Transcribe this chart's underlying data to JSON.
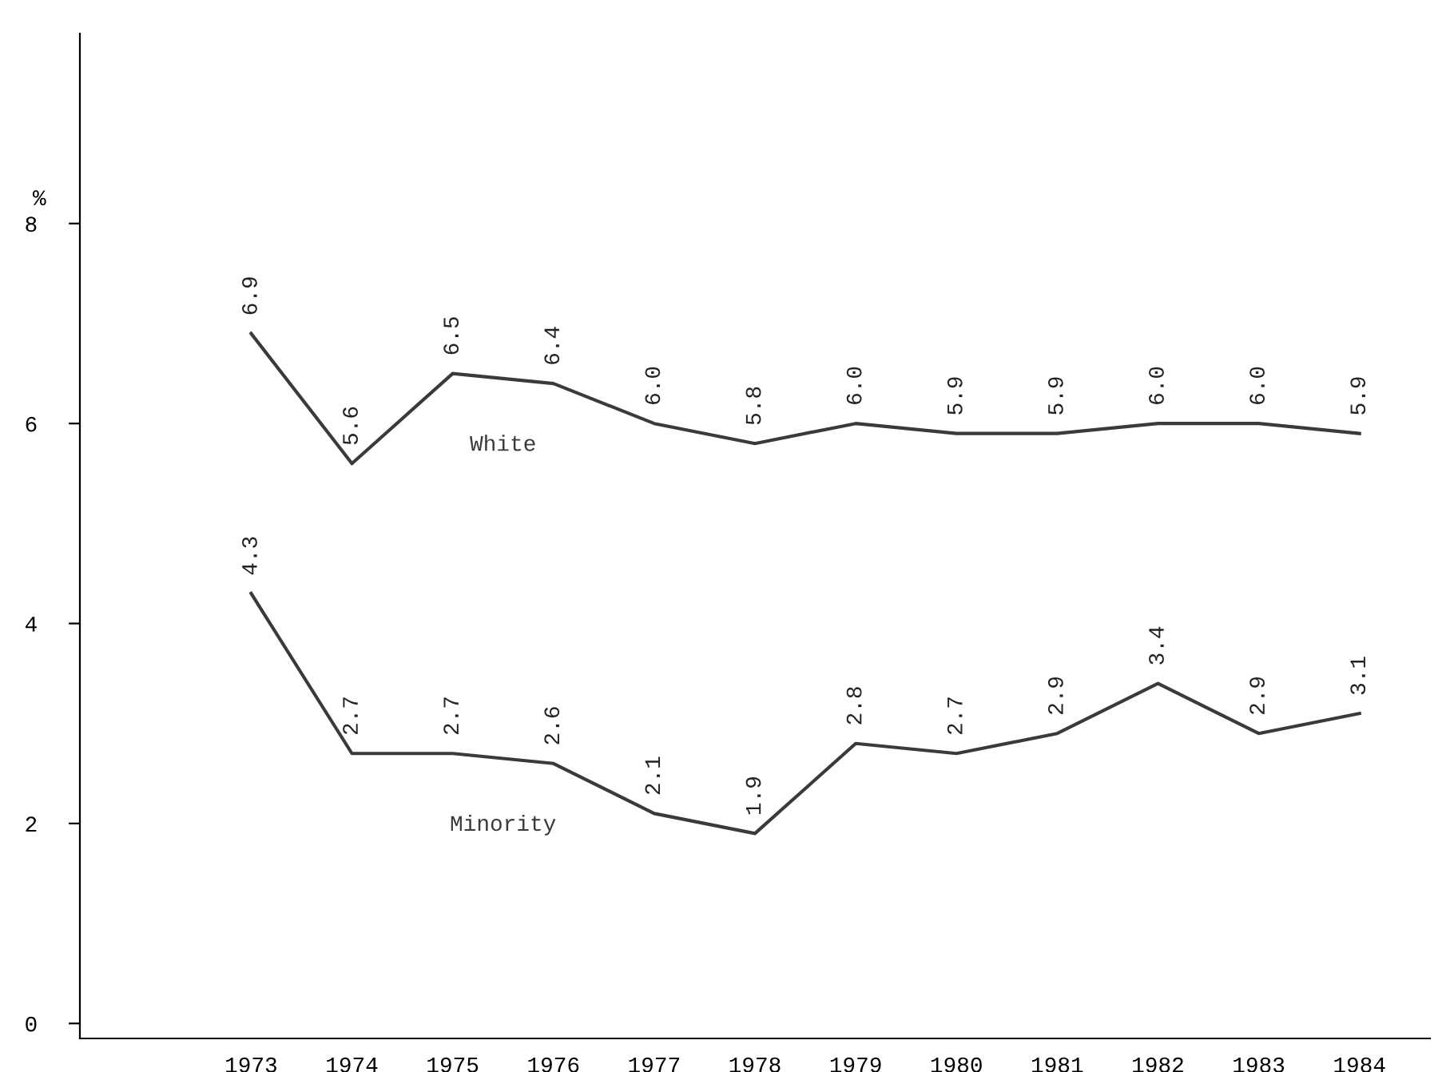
{
  "chart_data": {
    "type": "line",
    "ylabel": "%",
    "x": [
      1973,
      1974,
      1975,
      1976,
      1977,
      1978,
      1979,
      1980,
      1981,
      1982,
      1983,
      1984
    ],
    "series": [
      {
        "name": "White",
        "color": "#3a3a3a",
        "values": [
          6.9,
          5.6,
          6.5,
          6.4,
          6.0,
          5.8,
          6.0,
          5.9,
          5.9,
          6.0,
          6.0,
          5.9
        ],
        "value_labels": [
          "6.9",
          "5.6",
          "6.5",
          "6.4",
          "6.0",
          "5.8",
          "6.0",
          "5.9",
          "5.9",
          "6.0",
          "6.0",
          "5.9"
        ]
      },
      {
        "name": "Minority",
        "color": "#3a3a3a",
        "values": [
          4.3,
          2.7,
          2.7,
          2.6,
          2.1,
          1.9,
          2.8,
          2.7,
          2.9,
          3.4,
          2.9,
          3.1
        ],
        "value_labels": [
          "4.3",
          "2.7",
          "2.7",
          "2.6",
          "2.1",
          "1.9",
          "2.8",
          "2.7",
          "2.9",
          "3.4",
          "2.9",
          "3.1"
        ]
      }
    ],
    "xlim": [
      1971.3,
      1984.7
    ],
    "xticks": [
      1973,
      1974,
      1975,
      1976,
      1977,
      1978,
      1979,
      1980,
      1981,
      1982,
      1983,
      1984
    ],
    "ylim": [
      -0.15,
      9.9
    ],
    "yticks": [
      0,
      2,
      4,
      6,
      8
    ],
    "grid": false,
    "legend": false,
    "marker": "none",
    "line_style": "solid"
  }
}
